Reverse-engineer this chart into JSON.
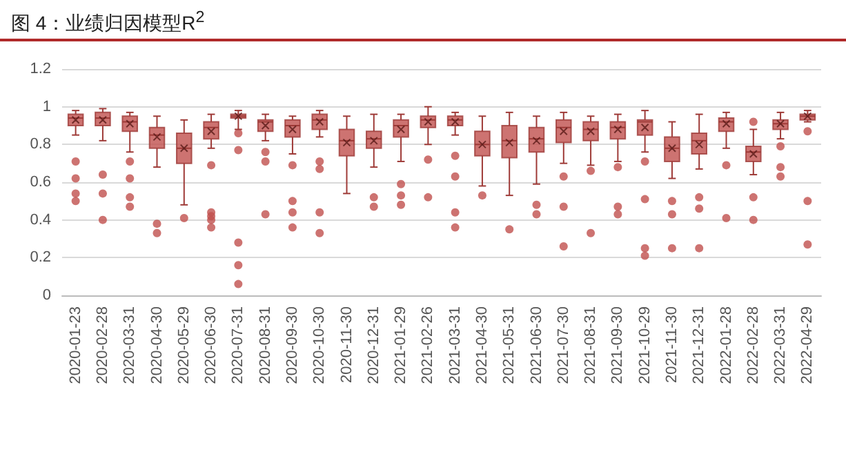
{
  "chart_data": {
    "type": "box",
    "title": "图 4：业绩归因模型R$^{2}$",
    "categories": [
      "2020-01-23",
      "2020-02-28",
      "2020-03-31",
      "2020-04-30",
      "2020-05-29",
      "2020-06-30",
      "2020-07-31",
      "2020-08-31",
      "2020-09-30",
      "2020-10-30",
      "2020-11-30",
      "2020-12-31",
      "2021-01-29",
      "2021-02-26",
      "2021-03-31",
      "2021-04-30",
      "2021-05-31",
      "2021-06-30",
      "2021-07-30",
      "2021-08-31",
      "2021-09-30",
      "2021-10-29",
      "2021-11-30",
      "2021-12-31",
      "2022-01-28",
      "2022-02-28",
      "2022-03-31",
      "2022-04-29"
    ],
    "series": [
      {
        "color": "#c0504d",
        "boxes": [
          {
            "low": 0.85,
            "q1": 0.9,
            "median": 0.94,
            "q3": 0.96,
            "high": 0.98,
            "mean": 0.93,
            "outliers": [
              0.71,
              0.62,
              0.54,
              0.5
            ]
          },
          {
            "low": 0.82,
            "q1": 0.9,
            "median": 0.94,
            "q3": 0.97,
            "high": 0.99,
            "mean": 0.93,
            "outliers": [
              0.64,
              0.54,
              0.4
            ]
          },
          {
            "low": 0.76,
            "q1": 0.87,
            "median": 0.92,
            "q3": 0.95,
            "high": 0.97,
            "mean": 0.91,
            "outliers": [
              0.71,
              0.62,
              0.52,
              0.47
            ]
          },
          {
            "low": 0.68,
            "q1": 0.78,
            "median": 0.85,
            "q3": 0.89,
            "high": 0.95,
            "mean": 0.84,
            "outliers": [
              0.38,
              0.33
            ]
          },
          {
            "low": 0.48,
            "q1": 0.7,
            "median": 0.78,
            "q3": 0.86,
            "high": 0.93,
            "mean": 0.78,
            "outliers": [
              0.41
            ]
          },
          {
            "low": 0.78,
            "q1": 0.83,
            "median": 0.89,
            "q3": 0.92,
            "high": 0.96,
            "mean": 0.87,
            "outliers": [
              0.69,
              0.44,
              0.42,
              0.4,
              0.36
            ]
          },
          {
            "low": 0.88,
            "q1": 0.94,
            "median": 0.95,
            "q3": 0.96,
            "high": 0.98,
            "mean": 0.95,
            "outliers": [
              0.86,
              0.77,
              0.28,
              0.16,
              0.06
            ]
          },
          {
            "low": 0.82,
            "q1": 0.87,
            "median": 0.92,
            "q3": 0.93,
            "high": 0.96,
            "mean": 0.9,
            "outliers": [
              0.76,
              0.71,
              0.43
            ]
          },
          {
            "low": 0.75,
            "q1": 0.84,
            "median": 0.9,
            "q3": 0.93,
            "high": 0.95,
            "mean": 0.88,
            "outliers": [
              0.69,
              0.5,
              0.44,
              0.36
            ]
          },
          {
            "low": 0.84,
            "q1": 0.88,
            "median": 0.93,
            "q3": 0.96,
            "high": 0.98,
            "mean": 0.92,
            "outliers": [
              0.71,
              0.67,
              0.44,
              0.33
            ]
          },
          {
            "low": 0.54,
            "q1": 0.74,
            "median": 0.82,
            "q3": 0.88,
            "high": 0.95,
            "mean": 0.81
          },
          {
            "low": 0.68,
            "q1": 0.78,
            "median": 0.83,
            "q3": 0.87,
            "high": 0.96,
            "mean": 0.82,
            "outliers": [
              0.52,
              0.47
            ]
          },
          {
            "low": 0.71,
            "q1": 0.84,
            "median": 0.9,
            "q3": 0.93,
            "high": 0.96,
            "mean": 0.88,
            "outliers": [
              0.59,
              0.53,
              0.48
            ]
          },
          {
            "low": 0.8,
            "q1": 0.89,
            "median": 0.93,
            "q3": 0.95,
            "high": 1.0,
            "mean": 0.92,
            "outliers": [
              0.72,
              0.52
            ]
          },
          {
            "low": 0.85,
            "q1": 0.9,
            "median": 0.93,
            "q3": 0.95,
            "high": 0.97,
            "mean": 0.92,
            "outliers": [
              0.74,
              0.63,
              0.44,
              0.36
            ]
          },
          {
            "low": 0.58,
            "q1": 0.74,
            "median": 0.8,
            "q3": 0.87,
            "high": 0.95,
            "mean": 0.8,
            "outliers": [
              0.53
            ]
          },
          {
            "low": 0.53,
            "q1": 0.73,
            "median": 0.82,
            "q3": 0.9,
            "high": 0.97,
            "mean": 0.81,
            "outliers": [
              0.35
            ]
          },
          {
            "low": 0.59,
            "q1": 0.76,
            "median": 0.83,
            "q3": 0.89,
            "high": 0.95,
            "mean": 0.82,
            "outliers": [
              0.48,
              0.43
            ]
          },
          {
            "low": 0.7,
            "q1": 0.81,
            "median": 0.89,
            "q3": 0.93,
            "high": 0.97,
            "mean": 0.87,
            "outliers": [
              0.63,
              0.47,
              0.26
            ]
          },
          {
            "low": 0.69,
            "q1": 0.82,
            "median": 0.88,
            "q3": 0.92,
            "high": 0.95,
            "mean": 0.87,
            "outliers": [
              0.66,
              0.33
            ]
          },
          {
            "low": 0.71,
            "q1": 0.83,
            "median": 0.89,
            "q3": 0.92,
            "high": 0.96,
            "mean": 0.88,
            "outliers": [
              0.68,
              0.47,
              0.43
            ]
          },
          {
            "low": 0.76,
            "q1": 0.85,
            "median": 0.92,
            "q3": 0.93,
            "high": 0.98,
            "mean": 0.89,
            "outliers": [
              0.71,
              0.51,
              0.25,
              0.21
            ]
          },
          {
            "low": 0.62,
            "q1": 0.71,
            "median": 0.78,
            "q3": 0.84,
            "high": 0.92,
            "mean": 0.78,
            "outliers": [
              0.5,
              0.43,
              0.25
            ]
          },
          {
            "low": 0.67,
            "q1": 0.75,
            "median": 0.82,
            "q3": 0.86,
            "high": 0.96,
            "mean": 0.8,
            "outliers": [
              0.52,
              0.46,
              0.25
            ]
          },
          {
            "low": 0.78,
            "q1": 0.87,
            "median": 0.92,
            "q3": 0.94,
            "high": 0.97,
            "mean": 0.91,
            "outliers": [
              0.69,
              0.41
            ]
          },
          {
            "low": 0.64,
            "q1": 0.71,
            "median": 0.76,
            "q3": 0.79,
            "high": 0.88,
            "mean": 0.75,
            "outliers": [
              0.92,
              0.52,
              0.4
            ]
          },
          {
            "low": 0.83,
            "q1": 0.88,
            "median": 0.91,
            "q3": 0.93,
            "high": 0.97,
            "mean": 0.91,
            "outliers": [
              0.79,
              0.68,
              0.63
            ]
          },
          {
            "low": 0.92,
            "q1": 0.93,
            "median": 0.95,
            "q3": 0.96,
            "high": 0.98,
            "mean": 0.95,
            "outliers": [
              0.87,
              0.5,
              0.27
            ]
          }
        ]
      }
    ],
    "ylim": [
      0,
      1.2
    ],
    "yticks": [
      0,
      0.2,
      0.4,
      0.6,
      0.8,
      1,
      1.2
    ],
    "grid": "y"
  }
}
